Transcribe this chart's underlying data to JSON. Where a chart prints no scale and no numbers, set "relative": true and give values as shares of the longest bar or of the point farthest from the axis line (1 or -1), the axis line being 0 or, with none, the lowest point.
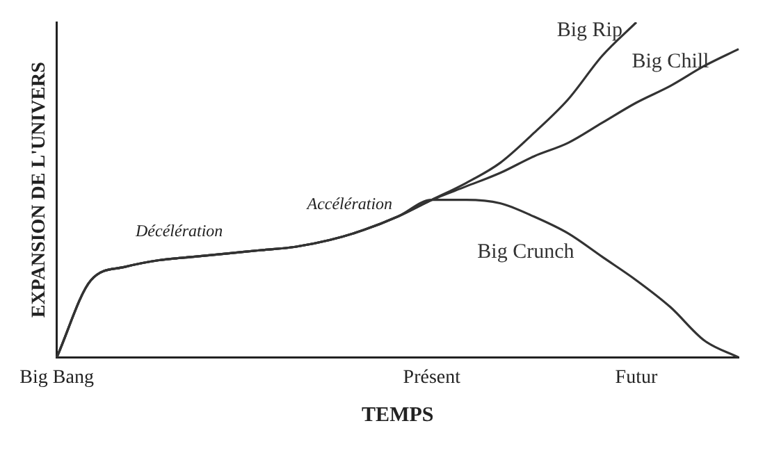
{
  "chart_data": {
    "type": "line",
    "relative": true,
    "xlabel": "TEMPS",
    "ylabel": "EXPANSION DE L'UNIVERS",
    "categories": [
      "Big Bang",
      null,
      null,
      null,
      null,
      null,
      null,
      null,
      null,
      null,
      null,
      "Présent",
      null,
      null,
      null,
      null,
      null,
      "Futur",
      null,
      null,
      null
    ],
    "series": [
      {
        "name": "Big Rip",
        "color": "#333333",
        "values": [
          0,
          0.23,
          0.27,
          0.29,
          0.3,
          0.31,
          0.32,
          0.33,
          0.35,
          0.38,
          0.42,
          0.47,
          0.52,
          0.58,
          0.67,
          0.77,
          0.9,
          1.0,
          null,
          null,
          null
        ]
      },
      {
        "name": "Big Chill",
        "color": "#333333",
        "values": [
          0,
          0.23,
          0.27,
          0.29,
          0.3,
          0.31,
          0.32,
          0.33,
          0.35,
          0.38,
          0.42,
          0.47,
          0.51,
          0.55,
          0.6,
          0.64,
          0.7,
          0.76,
          0.81,
          0.87,
          0.92
        ]
      },
      {
        "name": "Big Crunch",
        "color": "#333333",
        "values": [
          0,
          0.23,
          0.27,
          0.29,
          0.3,
          0.31,
          0.32,
          0.33,
          0.35,
          0.38,
          0.42,
          0.47,
          0.47,
          0.46,
          0.42,
          0.37,
          0.3,
          0.23,
          0.15,
          0.05,
          0
        ]
      }
    ],
    "annotations": [
      "Décélération",
      "Accélération"
    ],
    "grid": false,
    "legend": false,
    "marker": "none",
    "line_style": "solid"
  }
}
